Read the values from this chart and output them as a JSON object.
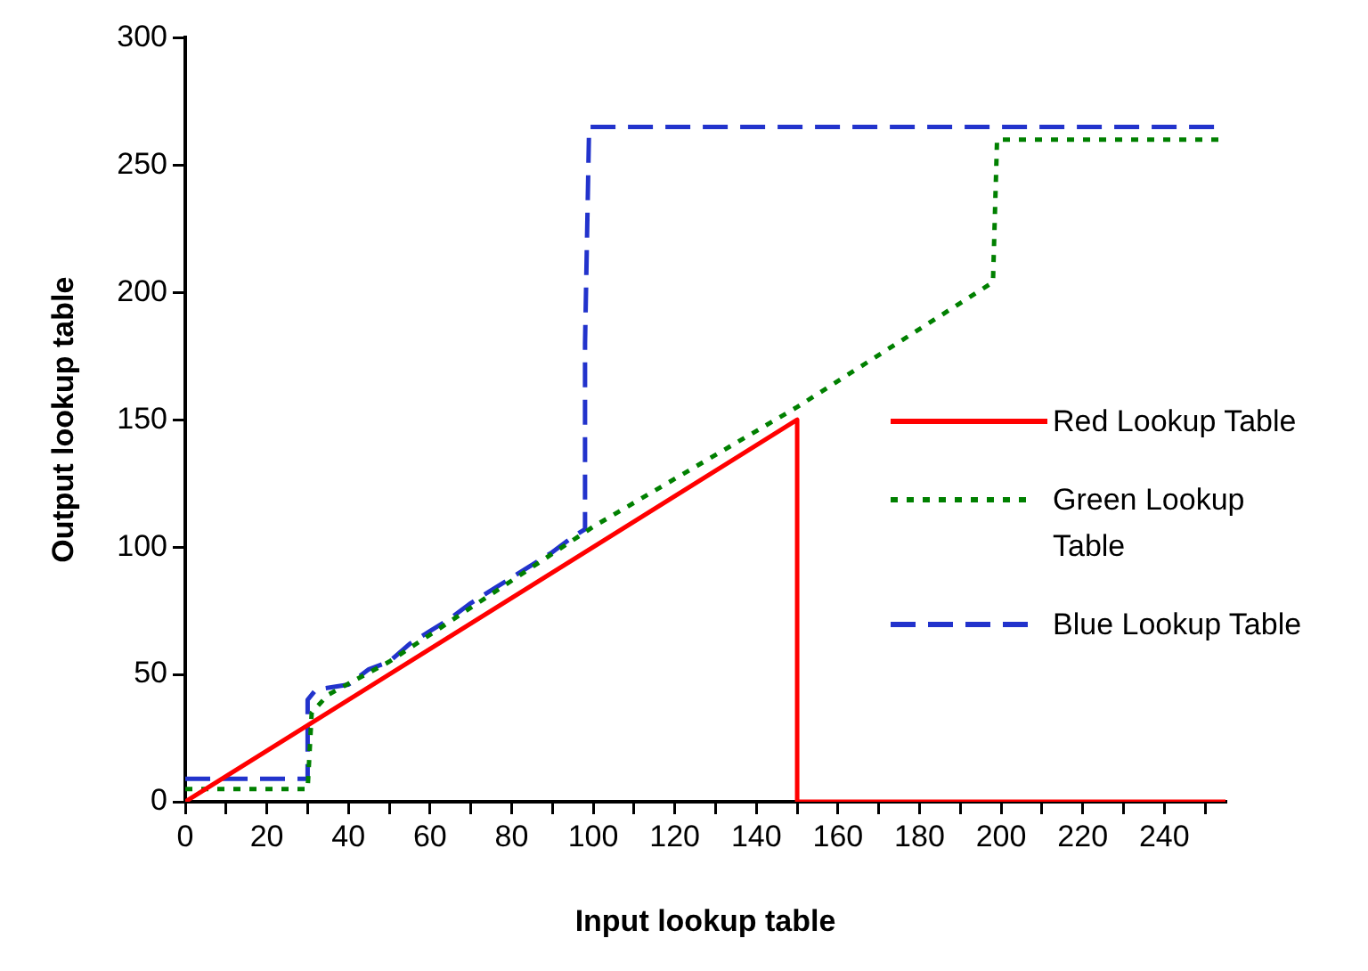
{
  "chart_data": {
    "type": "line",
    "xlabel": "Input lookup table",
    "ylabel": "Output lookup table",
    "xlim": [
      0,
      255
    ],
    "ylim": [
      0,
      300
    ],
    "xticks": [
      0,
      {
        "value": 10,
        "label": null
      },
      20,
      {
        "value": 30,
        "label": null
      },
      40,
      {
        "value": 50,
        "label": null
      },
      60,
      {
        "value": 70,
        "label": null
      },
      80,
      {
        "value": 90,
        "label": null
      },
      100,
      {
        "value": 110,
        "label": null
      },
      120,
      {
        "value": 130,
        "label": null
      },
      140,
      {
        "value": 150,
        "label": null
      },
      160,
      {
        "value": 170,
        "label": null
      },
      180,
      {
        "value": 190,
        "label": null
      },
      200,
      {
        "value": 210,
        "label": null
      },
      220,
      {
        "value": 230,
        "label": null
      },
      240,
      {
        "value": 250,
        "label": null
      }
    ],
    "yticks": [
      0,
      50,
      100,
      150,
      200,
      250,
      300
    ],
    "grid": false,
    "legend": "right",
    "marker": "none",
    "series": [
      {
        "name": "Red Lookup Table",
        "color": "#ff0000",
        "line_style": "solid",
        "x": [
          0,
          150,
          150,
          255
        ],
        "values": [
          0,
          150,
          0,
          0
        ]
      },
      {
        "name": "Green Lookup Table",
        "color": "#008000",
        "line_style": "dotted",
        "x": [
          0,
          30,
          31,
          35,
          50,
          100,
          150,
          198,
          199,
          255
        ],
        "values": [
          5,
          5,
          35,
          42,
          55,
          108,
          155,
          204,
          260,
          260
        ]
      },
      {
        "name": "Blue Lookup Table",
        "color": "#2233cc",
        "line_style": "dashed",
        "x": [
          0,
          30,
          30,
          32,
          40,
          45,
          50,
          55,
          60,
          65,
          70,
          75,
          80,
          85,
          90,
          95,
          98,
          98,
          99,
          255
        ],
        "values": [
          9,
          9,
          40,
          44,
          46,
          52,
          55,
          62,
          67,
          72,
          78,
          83,
          88,
          93,
          98,
          104,
          107,
          180,
          265,
          265
        ]
      }
    ]
  }
}
